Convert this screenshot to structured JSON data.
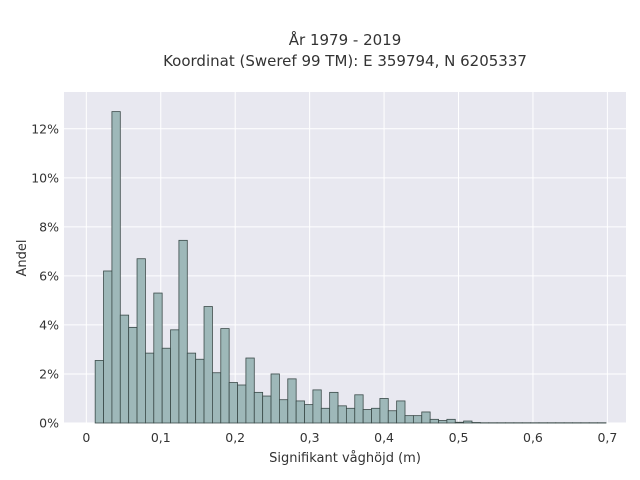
{
  "chart_data": {
    "type": "bar",
    "title": "År 1979 - 2019",
    "subtitle": "Koordinat (Sweref 99 TM): E 359794, N 6205337",
    "xlabel": "Signifikant våghöjd (m)",
    "ylabel": "Andel",
    "x_ticks": [
      "0",
      "0,1",
      "0,2",
      "0,3",
      "0,4",
      "0,5",
      "0,6",
      "0,7"
    ],
    "y_ticks": [
      "0%",
      "2%",
      "4%",
      "6%",
      "8%",
      "10%",
      "12%"
    ],
    "xlim": [
      -0.03,
      0.725
    ],
    "ylim": [
      0,
      13.5
    ],
    "bin_width": 0.01125,
    "x": [
      0.0175,
      0.02875,
      0.04,
      0.05125,
      0.0625,
      0.07375,
      0.085,
      0.09625,
      0.1075,
      0.11875,
      0.13,
      0.14125,
      0.1525,
      0.16375,
      0.175,
      0.18625,
      0.1975,
      0.20875,
      0.22,
      0.23125,
      0.2425,
      0.25375,
      0.265,
      0.27625,
      0.2875,
      0.29875,
      0.31,
      0.32125,
      0.3325,
      0.34375,
      0.355,
      0.36625,
      0.3775,
      0.38875,
      0.4,
      0.41125,
      0.4225,
      0.43375,
      0.445,
      0.45625,
      0.4675,
      0.47875,
      0.49,
      0.50125,
      0.5125,
      0.52375,
      0.535,
      0.54625,
      0.5575,
      0.56875,
      0.58,
      0.59125,
      0.6025,
      0.61375,
      0.625,
      0.63625,
      0.6475,
      0.65875,
      0.67,
      0.68125,
      0.6925
    ],
    "values": [
      2.55,
      6.2,
      12.7,
      4.4,
      3.9,
      6.7,
      2.85,
      5.3,
      3.05,
      3.8,
      7.45,
      2.85,
      2.6,
      4.75,
      2.05,
      3.85,
      1.65,
      1.55,
      2.65,
      1.25,
      1.1,
      2.0,
      0.95,
      1.8,
      0.9,
      0.75,
      1.35,
      0.6,
      1.25,
      0.7,
      0.6,
      1.15,
      0.55,
      0.6,
      1.0,
      0.5,
      0.9,
      0.3,
      0.3,
      0.45,
      0.15,
      0.1,
      0.15,
      0.03,
      0.08,
      0.02,
      0.01,
      0.01,
      0.01,
      0.01,
      0.01,
      0.01,
      0.01,
      0.01,
      0.01,
      0.01,
      0.01,
      0.01,
      0.01,
      0.01,
      0.01
    ],
    "grid": true,
    "colors": {
      "bar_fill": "#9eb8b9",
      "bar_edge": "#3a4a48",
      "plot_bg": "#e8e8f0",
      "grid": "#ffffff"
    }
  }
}
